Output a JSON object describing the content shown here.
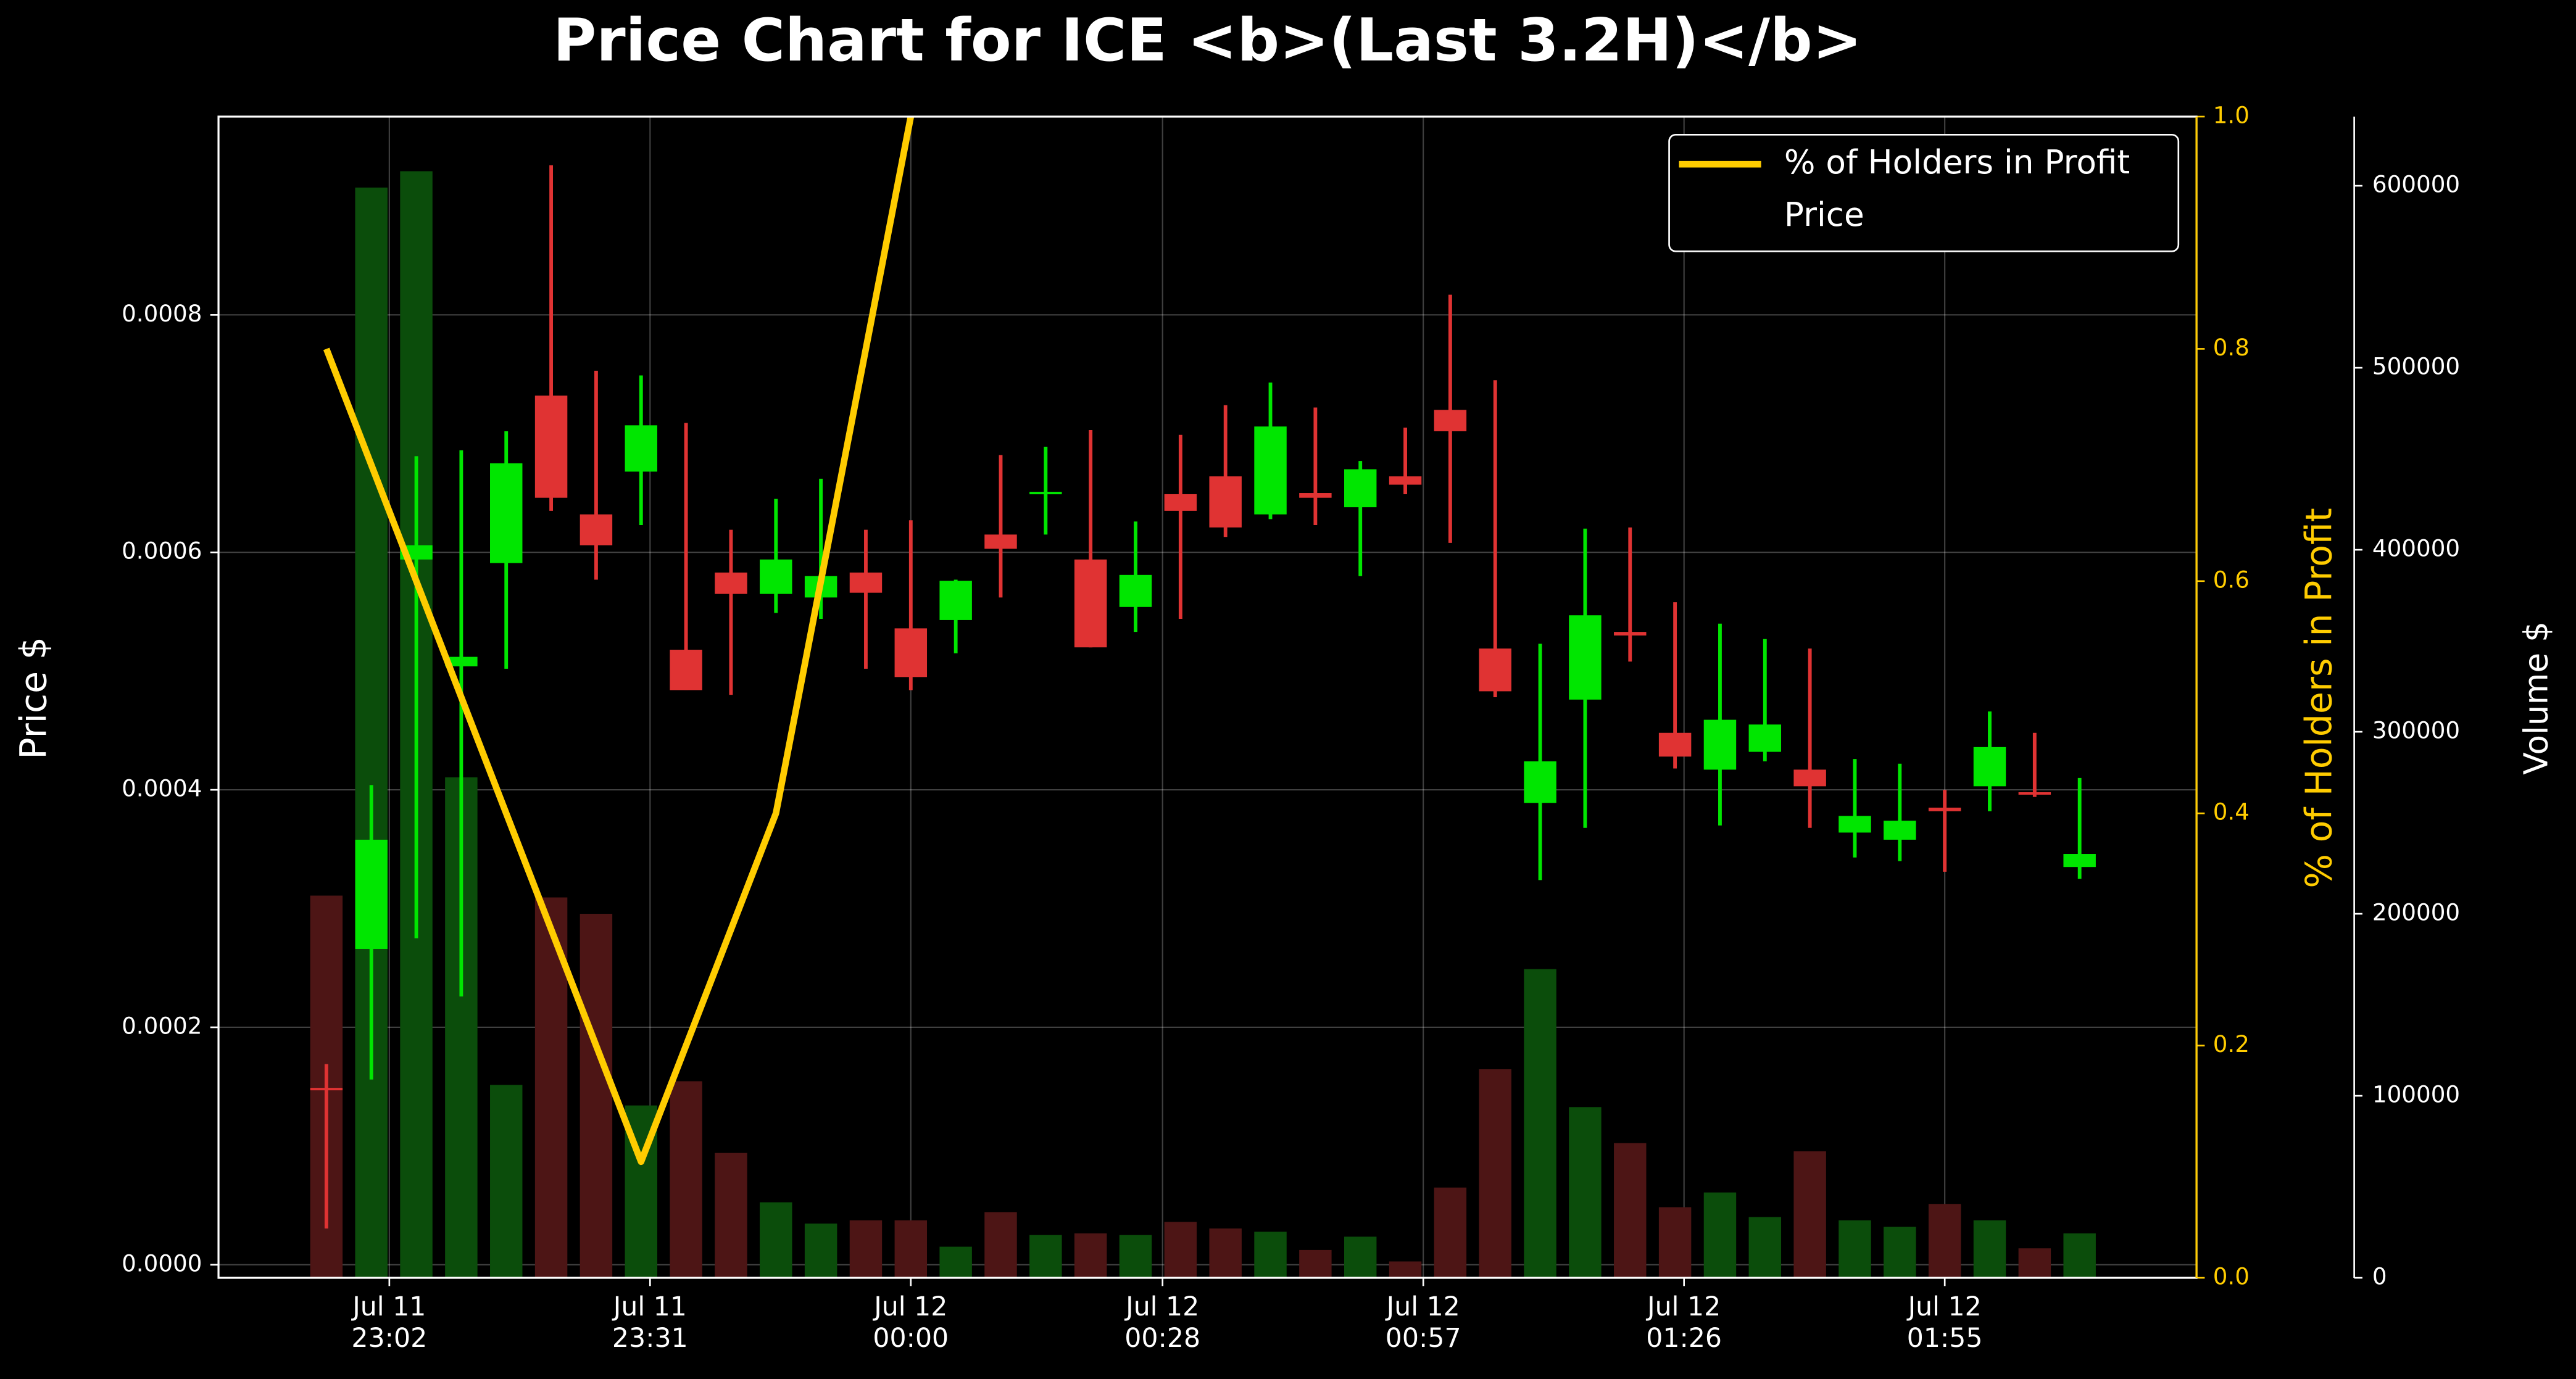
{
  "chart_data": {
    "type": "candlestick",
    "title": "Price Chart for ICE <b>(Last 3.2H)</b>",
    "ylabel": "Price $",
    "y2label": "% of Holders in Profit",
    "y3label": "Volume $",
    "xlim": [
      "Jul 11 22:43",
      "Jul 12 02:23"
    ],
    "xticks": [
      {
        "value": "Jul 11 23:02",
        "label": "Jul 11\n23:02"
      },
      {
        "value": "Jul 11 23:31",
        "label": "Jul 11\n23:31"
      },
      {
        "value": "Jul 12 00:00",
        "label": "Jul 12\n00:00"
      },
      {
        "value": "Jul 12 00:28",
        "label": "Jul 12\n00:28"
      },
      {
        "value": "Jul 12 00:57",
        "label": "Jul 12\n00:57"
      },
      {
        "value": "Jul 12 01:26",
        "label": "Jul 12\n01:26"
      },
      {
        "value": "Jul 12 01:55",
        "label": "Jul 12\n01:55"
      }
    ],
    "ylim": [
      -1.1e-05,
      0.000967
    ],
    "yticks": [
      {
        "value": 0,
        "label": "0.0000"
      },
      0.0002,
      0.0004,
      0.0006,
      0.0008
    ],
    "y2lim": [
      0,
      1
    ],
    "y2ticks": [
      {
        "value": 0,
        "label": "0.0"
      },
      0.2,
      0.4,
      0.6,
      0.8,
      {
        "value": 1,
        "label": "1.0"
      }
    ],
    "y3lim": [
      0,
      638000
    ],
    "y3ticks": [
      0,
      100000,
      200000,
      300000,
      400000,
      500000,
      600000
    ],
    "grid": true,
    "legend": "upper right",
    "up_color": "#00e600",
    "down_color": "#e03333",
    "volume_up_color": "#0b4d0b",
    "volume_down_color": "#4d1515",
    "candles": {
      "name": "Price",
      "x": [
        "Jul 11 22:55",
        "Jul 11 23:00",
        "Jul 11 23:05",
        "Jul 11 23:10",
        "Jul 11 23:15",
        "Jul 11 23:20",
        "Jul 11 23:25",
        "Jul 11 23:30",
        "Jul 11 23:35",
        "Jul 11 23:40",
        "Jul 11 23:45",
        "Jul 11 23:50",
        "Jul 11 23:55",
        "Jul 12 00:00",
        "Jul 12 00:05",
        "Jul 12 00:10",
        "Jul 12 00:15",
        "Jul 12 00:20",
        "Jul 12 00:25",
        "Jul 12 00:30",
        "Jul 12 00:35",
        "Jul 12 00:40",
        "Jul 12 00:45",
        "Jul 12 00:50",
        "Jul 12 00:55",
        "Jul 12 01:00",
        "Jul 12 01:05",
        "Jul 12 01:10",
        "Jul 12 01:15",
        "Jul 12 01:20",
        "Jul 12 01:25",
        "Jul 12 01:30",
        "Jul 12 01:35",
        "Jul 12 01:40",
        "Jul 12 01:45",
        "Jul 12 01:50",
        "Jul 12 01:55",
        "Jul 12 02:00",
        "Jul 12 02:05",
        "Jul 12 02:10"
      ],
      "open": [
        0.000149,
        0.000266,
        0.000594,
        0.000504,
        0.000591,
        0.000732,
        0.000632,
        0.000668,
        0.000518,
        0.000583,
        0.000565,
        0.000562,
        0.000583,
        0.000536,
        0.000543,
        0.000615,
        0.000649,
        0.000594,
        0.000554,
        0.000649,
        0.000664,
        0.000632,
        0.00065,
        0.000638,
        0.000664,
        0.00072,
        0.000519,
        0.000389,
        0.000476,
        0.000533,
        0.000448,
        0.000417,
        0.000432,
        0.000417,
        0.000364,
        0.000358,
        0.000385,
        0.000403,
        0.000398,
        0.000335
      ],
      "close": [
        0.000148,
        0.000358,
        0.000606,
        0.000512,
        0.000675,
        0.000646,
        0.000606,
        0.000707,
        0.000484,
        0.000565,
        0.000594,
        0.00058,
        0.000566,
        0.000495,
        0.000576,
        0.000603,
        0.000651,
        0.00052,
        0.000581,
        0.000635,
        0.000621,
        0.000706,
        0.000646,
        0.00067,
        0.000657,
        0.000702,
        0.000483,
        0.000424,
        0.000547,
        0.00053,
        0.000428,
        0.000459,
        0.000455,
        0.000403,
        0.000378,
        0.000374,
        0.000382,
        0.000436,
        0.000396,
        0.000346
      ],
      "high": [
        0.000169,
        0.000404,
        0.000681,
        0.000686,
        0.000702,
        0.000926,
        0.000753,
        0.000749,
        0.000709,
        0.000619,
        0.000645,
        0.000662,
        0.000619,
        0.000627,
        0.000577,
        0.000682,
        0.000689,
        0.000703,
        0.000626,
        0.000699,
        0.000724,
        0.000743,
        0.000722,
        0.000677,
        0.000705,
        0.000817,
        0.000745,
        0.000523,
        0.00062,
        0.000621,
        0.000558,
        0.00054,
        0.000527,
        0.000519,
        0.000426,
        0.000422,
        0.0004,
        0.000466,
        0.000448,
        0.00041
      ],
      "low": [
        3.05e-05,
        0.000156,
        0.000275,
        0.000226,
        0.000502,
        0.000635,
        0.000577,
        0.000623,
        0.000484,
        0.00048,
        0.000549,
        0.000544,
        0.000502,
        0.000484,
        0.000515,
        0.000562,
        0.000615,
        0.00052,
        0.000533,
        0.000544,
        0.000613,
        0.000628,
        0.000623,
        0.00058,
        0.000649,
        0.000608,
        0.000478,
        0.000324,
        0.000368,
        0.000508,
        0.000418,
        0.00037,
        0.000424,
        0.000368,
        0.000343,
        0.00034,
        0.000331,
        0.000382,
        0.000394,
        0.000325
      ]
    },
    "volume": {
      "axis": "y3",
      "values": [
        210000,
        599000,
        608000,
        275000,
        106000,
        209000,
        200000,
        94700,
        108000,
        68600,
        41500,
        29800,
        31600,
        31600,
        17100,
        36100,
        23500,
        24400,
        23500,
        30700,
        27100,
        25300,
        15300,
        22600,
        9000,
        49600,
        114600,
        169600,
        93800,
        74000,
        38800,
        46900,
        33400,
        69500,
        31600,
        28000,
        40600,
        31600,
        16200,
        24400
      ]
    },
    "series": [
      {
        "name": "% of Holders in Profit",
        "color": "#ffcc00",
        "axis": "y2",
        "x": [
          "Jul 11 22:55",
          "Jul 11 23:30",
          "Jul 11 23:45",
          "Jul 12 00:00"
        ],
        "values": [
          0.8,
          0.1,
          0.4,
          1.0
        ]
      }
    ]
  }
}
